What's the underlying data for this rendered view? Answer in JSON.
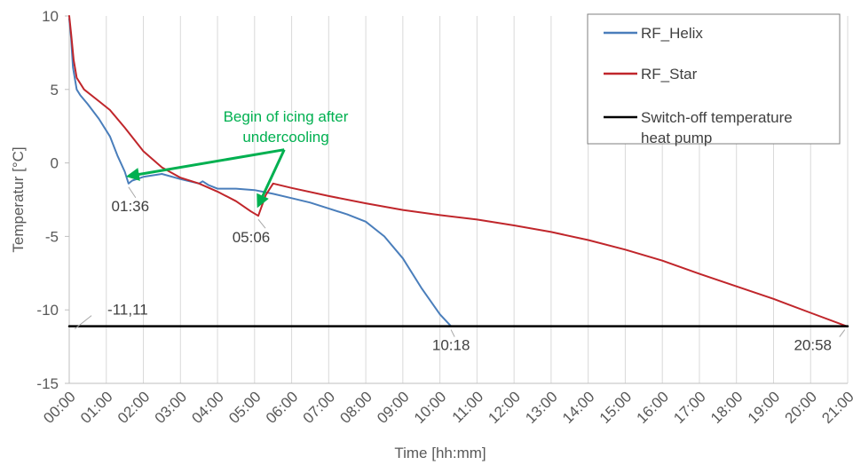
{
  "chart_data": {
    "type": "line",
    "xlabel": "Time [hh:mm]",
    "ylabel": "Temperatur [°C]",
    "x_unit": "hours",
    "xlim": [
      0,
      21
    ],
    "ylim": [
      -15,
      10
    ],
    "yticks": [
      10,
      5,
      0,
      -5,
      -10,
      -15
    ],
    "xtick_labels": [
      "00:00",
      "01:00",
      "02:00",
      "03:00",
      "04:00",
      "05:00",
      "06:00",
      "07:00",
      "08:00",
      "09:00",
      "10:00",
      "11:00",
      "12:00",
      "13:00",
      "14:00",
      "15:00",
      "16:00",
      "17:00",
      "18:00",
      "19:00",
      "20:00",
      "21:00"
    ],
    "grid": "vertical",
    "legend_position": "top-right",
    "series": [
      {
        "name": "RF_Helix",
        "color": "#4a7ebb",
        "points": [
          [
            0,
            9.8
          ],
          [
            0.05,
            8.5
          ],
          [
            0.1,
            6.5
          ],
          [
            0.2,
            5.0
          ],
          [
            0.3,
            4.6
          ],
          [
            0.5,
            4.0
          ],
          [
            0.8,
            3.0
          ],
          [
            1.1,
            1.8
          ],
          [
            1.3,
            0.5
          ],
          [
            1.5,
            -0.6
          ],
          [
            1.6,
            -1.4
          ],
          [
            1.7,
            -1.2
          ],
          [
            2.0,
            -0.95
          ],
          [
            2.5,
            -0.75
          ],
          [
            3.0,
            -1.1
          ],
          [
            3.5,
            -1.4
          ],
          [
            3.6,
            -1.25
          ],
          [
            3.75,
            -1.5
          ],
          [
            4.0,
            -1.75
          ],
          [
            4.5,
            -1.75
          ],
          [
            5.0,
            -1.85
          ],
          [
            5.5,
            -2.1
          ],
          [
            6.0,
            -2.4
          ],
          [
            6.5,
            -2.7
          ],
          [
            7.0,
            -3.1
          ],
          [
            7.5,
            -3.5
          ],
          [
            8.0,
            -4.0
          ],
          [
            8.5,
            -5.0
          ],
          [
            9.0,
            -6.5
          ],
          [
            9.5,
            -8.5
          ],
          [
            10.0,
            -10.3
          ],
          [
            10.3,
            -11.11
          ]
        ]
      },
      {
        "name": "RF_Star",
        "color": "#c0262b",
        "points": [
          [
            0,
            10.0
          ],
          [
            0.05,
            8.8
          ],
          [
            0.12,
            7.0
          ],
          [
            0.2,
            5.8
          ],
          [
            0.4,
            5.0
          ],
          [
            0.8,
            4.2
          ],
          [
            1.1,
            3.6
          ],
          [
            1.5,
            2.4
          ],
          [
            2.0,
            0.8
          ],
          [
            2.5,
            -0.3
          ],
          [
            3.0,
            -1.0
          ],
          [
            3.5,
            -1.4
          ],
          [
            4.0,
            -1.95
          ],
          [
            4.5,
            -2.6
          ],
          [
            4.9,
            -3.3
          ],
          [
            5.1,
            -3.6
          ],
          [
            5.3,
            -2.2
          ],
          [
            5.5,
            -1.4
          ],
          [
            6.0,
            -1.7
          ],
          [
            7.0,
            -2.25
          ],
          [
            8.0,
            -2.75
          ],
          [
            9.0,
            -3.2
          ],
          [
            10.0,
            -3.55
          ],
          [
            11.0,
            -3.85
          ],
          [
            12.0,
            -4.25
          ],
          [
            13.0,
            -4.7
          ],
          [
            14.0,
            -5.25
          ],
          [
            15.0,
            -5.9
          ],
          [
            16.0,
            -6.65
          ],
          [
            17.0,
            -7.55
          ],
          [
            18.0,
            -8.4
          ],
          [
            19.0,
            -9.25
          ],
          [
            20.0,
            -10.2
          ],
          [
            20.97,
            -11.11
          ]
        ]
      },
      {
        "name": "Switch-off temperature heat pump",
        "color": "#000000",
        "points": [
          [
            0,
            -11.11
          ],
          [
            21,
            -11.11
          ]
        ]
      }
    ],
    "legend_entries": [
      "RF_Helix",
      "RF_Star",
      "Switch-off temperature heat pump"
    ],
    "annotations": {
      "green_note": "Begin of icing after undercooling",
      "green_note_line1": "Begin of icing after",
      "green_note_line2": "undercooling",
      "green_color": "#00b050",
      "green_origin": [
        5.8,
        0.9
      ],
      "green_targets": [
        [
          1.6,
          -0.9
        ],
        [
          5.1,
          -2.9
        ]
      ],
      "labels": [
        {
          "text": "01:36",
          "at": [
            1.6,
            -1.4
          ]
        },
        {
          "text": "05:06",
          "at": [
            5.1,
            -3.6
          ]
        },
        {
          "text": "10:18",
          "at": [
            10.3,
            -11.11
          ]
        },
        {
          "text": "20:58",
          "at": [
            20.97,
            -11.11
          ]
        },
        {
          "text": "-11,11",
          "at": [
            0.6,
            -11.11
          ]
        }
      ]
    }
  }
}
